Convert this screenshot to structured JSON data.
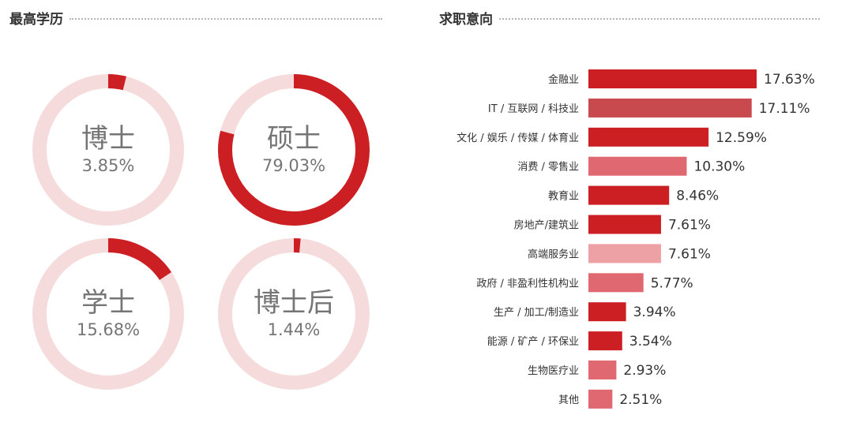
{
  "education": {
    "title": "最高学历",
    "items": [
      {
        "name": "博士",
        "pct_label": "3.85%",
        "value": 3.85
      },
      {
        "name": "硕士",
        "pct_label": "79.03%",
        "value": 79.03
      },
      {
        "name": "学士",
        "pct_label": "15.68%",
        "value": 15.68
      },
      {
        "name": "博士后",
        "pct_label": "1.44%",
        "value": 1.44
      }
    ],
    "colors": {
      "arc": "#cc1f24",
      "track": "#f6dbdc"
    }
  },
  "job_intent": {
    "title": "求职意向"
  },
  "chart_data": [
    {
      "type": "pie",
      "title": "最高学历",
      "categories": [
        "博士",
        "硕士",
        "学士",
        "博士后"
      ],
      "values": [
        3.85,
        79.03,
        15.68,
        1.44
      ]
    },
    {
      "type": "bar",
      "orientation": "horizontal",
      "title": "求职意向",
      "categories": [
        "金融业",
        "IT / 互联网 / 科技业",
        "文化 / 娱乐 / 传媒 / 体育业",
        "消费 / 零售业",
        "教育业",
        "房地产/建筑业",
        "高端服务业",
        "政府 / 非盈利性机构业",
        "生产 / 加工/制造业",
        "能源 / 矿产 / 环保业",
        "生物医疗业",
        "其他"
      ],
      "values": [
        17.63,
        17.11,
        12.59,
        10.3,
        8.46,
        7.61,
        7.61,
        5.77,
        3.94,
        3.54,
        2.93,
        2.51
      ],
      "value_labels": [
        "17.63%",
        "17.11%",
        "12.59%",
        "10.30%",
        "8.46%",
        "7.61%",
        "7.61%",
        "5.77%",
        "3.94%",
        "3.54%",
        "2.93%",
        "2.51%"
      ],
      "bar_colors": [
        "#cc1f24",
        "#c84a4e",
        "#cc1f24",
        "#e06870",
        "#cc1f24",
        "#cc1f24",
        "#eda1a4",
        "#e06870",
        "#cc1f24",
        "#cc1f24",
        "#e06870",
        "#e06870"
      ]
    }
  ]
}
